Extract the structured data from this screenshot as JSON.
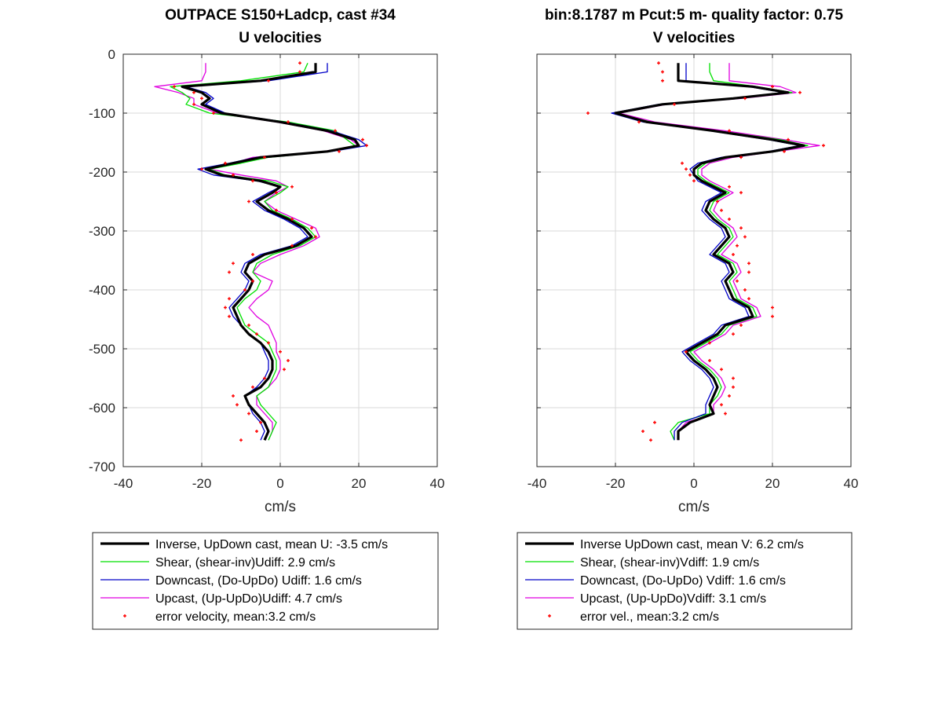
{
  "colors": {
    "inverse": "#000000",
    "shear": "#00e000",
    "downcast": "#0000c8",
    "upcast": "#e000e0",
    "error": "#ff0000",
    "grid": "#d9d9d9"
  },
  "chart_data": [
    {
      "type": "line",
      "title": "OUTPACE S150+Ladcp, cast #34",
      "subtitle": "U velocities",
      "xlabel": "cm/s",
      "ylabel": "",
      "xlim": [
        -40,
        40
      ],
      "ylim": [
        -700,
        0
      ],
      "xticks": [
        -40,
        -20,
        0,
        20,
        40
      ],
      "yticks": [
        0,
        -100,
        -200,
        -300,
        -400,
        -500,
        -600,
        -700
      ],
      "grid": true,
      "legend_position": "below",
      "depth": [
        -15,
        -30,
        -45,
        -55,
        -65,
        -75,
        -85,
        -100,
        -115,
        -130,
        -145,
        -155,
        -165,
        -175,
        -185,
        -195,
        -205,
        -215,
        -225,
        -235,
        -250,
        -265,
        -280,
        -295,
        -310,
        -325,
        -340,
        -355,
        -370,
        -385,
        -400,
        -415,
        -430,
        -445,
        -460,
        -475,
        -490,
        -505,
        -520,
        -535,
        -550,
        -565,
        -580,
        -595,
        -610,
        -625,
        -640,
        -655
      ],
      "series": [
        {
          "name": "Inverse, UpDown cast, mean U:  -3.5 cm/s",
          "key": "inverse",
          "values": [
            9,
            9,
            -5,
            -25,
            -20,
            -18,
            -20,
            -15,
            0,
            12,
            19,
            20,
            12,
            -5,
            -12,
            -19,
            -15,
            -5,
            0,
            -2,
            -6,
            -3,
            2,
            6,
            8,
            4,
            -4,
            -8,
            -9,
            -7,
            -8,
            -10,
            -12,
            -11,
            -10,
            -8,
            -5,
            -3,
            -2,
            -2,
            -3,
            -5,
            -9,
            -8,
            -6,
            -4,
            -3,
            -4
          ]
        },
        {
          "name": "Shear, (shear-inv)Udiff:  2.9 cm/s",
          "key": "shear",
          "values": [
            7,
            6,
            -10,
            -28,
            -25,
            -23,
            -24,
            -18,
            2,
            14,
            17,
            19,
            13,
            -3,
            -10,
            -18,
            -14,
            -3,
            2,
            0,
            -4,
            -2,
            3,
            7,
            9,
            5,
            -2,
            -6,
            -7,
            -5,
            -6,
            -9,
            -11,
            -10,
            -9,
            -6,
            -3,
            -2,
            -1,
            -1,
            -2,
            -3,
            -6,
            -5,
            -3,
            -1,
            -2,
            -3
          ]
        },
        {
          "name": "Downcast, (Do-UpDo) Udiff:  1.6 cm/s",
          "key": "downcast",
          "values": [
            12,
            12,
            -3,
            -24,
            -19,
            -17,
            -19,
            -14,
            1,
            13,
            20,
            22,
            13,
            -6,
            -13,
            -21,
            -17,
            -6,
            0,
            -3,
            -7,
            -4,
            1,
            5,
            7,
            3,
            -5,
            -9,
            -10,
            -8,
            -9,
            -11,
            -13,
            -12,
            -10,
            -8,
            -5,
            -4,
            -3,
            -3,
            -4,
            -6,
            -9,
            -8,
            -7,
            -5,
            -4,
            -5
          ]
        },
        {
          "name": "Upcast, (Up-UpDo)Udiff:  4.7 cm/s",
          "key": "upcast",
          "values": [
            -19,
            -19,
            -20,
            -32,
            -26,
            -22,
            -22,
            -16,
            -1,
            11,
            18,
            20,
            11,
            -7,
            -12,
            -18,
            -10,
            -1,
            2,
            -1,
            -4,
            -1,
            4,
            9,
            10,
            6,
            0,
            -5,
            -7,
            -2,
            -3,
            -6,
            -8,
            -6,
            -3,
            -2,
            -1,
            -1,
            0,
            0,
            -1,
            -3,
            -6,
            -6,
            -4,
            -2,
            -2,
            -3
          ]
        },
        {
          "name": "error velocity, mean:3.2 cm/s",
          "key": "error",
          "type": "scatter",
          "values": [
            5,
            5,
            -3,
            -27,
            -22,
            -20,
            -22,
            -17,
            2,
            14,
            21,
            22,
            15,
            -4,
            -14,
            -20,
            -12,
            -7,
            3,
            -1,
            -8,
            -1,
            3,
            8,
            9,
            3,
            -7,
            -12,
            -13,
            -7,
            -9,
            -13,
            -14,
            -13,
            -8,
            -6,
            -3,
            0,
            2,
            1,
            -4,
            -7,
            -12,
            -11,
            -8,
            -5,
            -6,
            -10
          ]
        }
      ]
    },
    {
      "type": "line",
      "title": "bin:8.1787 m  Pcut:5 m- quality factor:  0.75",
      "subtitle": "V velocities",
      "xlabel": "cm/s",
      "ylabel": "",
      "xlim": [
        -40,
        40
      ],
      "ylim": [
        -700,
        0
      ],
      "xticks": [
        -40,
        -20,
        0,
        20,
        40
      ],
      "yticks": [
        0,
        -100,
        -200,
        -300,
        -400,
        -500,
        -600,
        -700
      ],
      "grid": true,
      "legend_position": "below",
      "depth": [
        -15,
        -30,
        -45,
        -55,
        -65,
        -75,
        -85,
        -100,
        -115,
        -130,
        -145,
        -155,
        -165,
        -175,
        -185,
        -195,
        -205,
        -215,
        -225,
        -235,
        -250,
        -265,
        -280,
        -295,
        -310,
        -325,
        -340,
        -355,
        -370,
        -385,
        -400,
        -415,
        -430,
        -445,
        -460,
        -475,
        -490,
        -505,
        -520,
        -535,
        -550,
        -565,
        -580,
        -595,
        -610,
        -625,
        -640,
        -655
      ],
      "series": [
        {
          "name": "Inverse UpDown cast, mean V:  6.2 cm/s",
          "key": "inverse",
          "values": [
            -4,
            -4,
            -4,
            15,
            24,
            10,
            -8,
            -20,
            -12,
            5,
            20,
            28,
            20,
            8,
            2,
            0,
            0,
            2,
            5,
            8,
            4,
            3,
            5,
            8,
            9,
            7,
            5,
            9,
            10,
            8,
            9,
            10,
            14,
            15,
            8,
            6,
            2,
            -2,
            0,
            3,
            5,
            6,
            5,
            4,
            5,
            -1,
            -4,
            -4
          ]
        },
        {
          "name": "Shear, (shear-inv)Vdiff:  1.9 cm/s",
          "key": "shear",
          "values": [
            4,
            4,
            5,
            16,
            25,
            11,
            -8,
            -20,
            -11,
            6,
            22,
            29,
            21,
            9,
            3,
            1,
            1,
            3,
            6,
            9,
            5,
            4,
            6,
            9,
            10,
            8,
            6,
            10,
            11,
            9,
            10,
            11,
            15,
            16,
            9,
            7,
            3,
            -1,
            1,
            4,
            6,
            7,
            6,
            4,
            4,
            -4,
            -6,
            -5
          ]
        },
        {
          "name": "Downcast, (Do-UpDo) Vdiff:  1.6 cm/s",
          "key": "downcast",
          "values": [
            -2,
            -2,
            -2,
            14,
            23,
            9,
            -9,
            -21,
            -13,
            4,
            19,
            27,
            19,
            7,
            1,
            -1,
            0,
            1,
            4,
            7,
            3,
            2,
            4,
            7,
            8,
            6,
            4,
            8,
            9,
            7,
            8,
            9,
            13,
            14,
            7,
            5,
            1,
            -3,
            -1,
            2,
            4,
            5,
            4,
            3,
            3,
            -3,
            -5,
            -5
          ]
        },
        {
          "name": "Upcast, (Up-UpDo)Vdiff:  3.1 cm/s",
          "key": "upcast",
          "values": [
            9,
            9,
            9,
            22,
            26,
            12,
            -7,
            -19,
            -10,
            8,
            23,
            32,
            21,
            10,
            4,
            2,
            2,
            4,
            7,
            10,
            6,
            5,
            7,
            10,
            11,
            9,
            7,
            11,
            12,
            10,
            11,
            12,
            16,
            17,
            10,
            8,
            4,
            0,
            2,
            5,
            7,
            8,
            7,
            5,
            5,
            -2,
            -4,
            -4
          ]
        },
        {
          "name": "error vel., mean:3.2 cm/s",
          "key": "error",
          "type": "scatter",
          "values": [
            -9,
            -8,
            -8,
            20,
            27,
            13,
            -5,
            -27,
            -14,
            9,
            24,
            33,
            23,
            12,
            -3,
            -2,
            -1,
            0,
            9,
            12,
            6,
            7,
            9,
            12,
            13,
            11,
            10,
            14,
            14,
            11,
            13,
            14,
            20,
            20,
            12,
            10,
            4,
            -2,
            4,
            7,
            10,
            10,
            9,
            7,
            8,
            -10,
            -13,
            -11
          ]
        }
      ]
    }
  ]
}
